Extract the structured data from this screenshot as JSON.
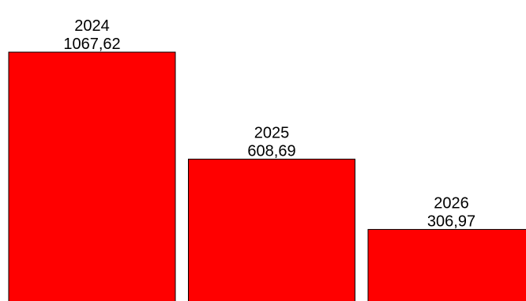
{
  "chart_data": {
    "type": "bar",
    "categories": [
      "2024",
      "2025",
      "2026"
    ],
    "values": [
      1067.62,
      608.69,
      306.97
    ],
    "value_labels": [
      "1067,62",
      "608,69",
      "306,97"
    ],
    "title": "",
    "xlabel": "",
    "ylabel": "",
    "ylim": [
      0,
      1150
    ],
    "grid": false,
    "legend": "none",
    "colors": {
      "bar_fill": "#ff0000",
      "bar_stroke": "#000000",
      "text": "#000000",
      "background": "#ffffff"
    }
  }
}
